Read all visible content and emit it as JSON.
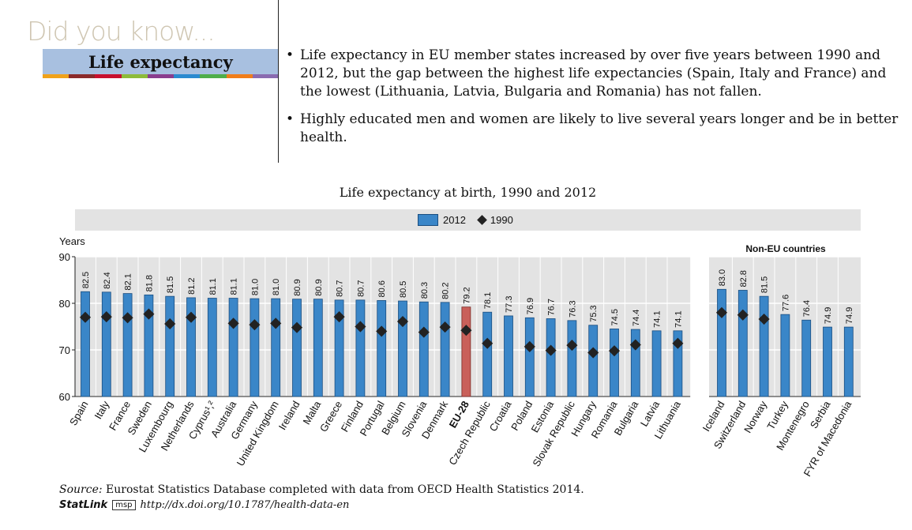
{
  "header": {
    "kicker": "Did you know...",
    "title": "Life expectancy",
    "stripe_colors": [
      "#f0a21a",
      "#8b2a2a",
      "#c8102e",
      "#8dbb3a",
      "#8a3d8e",
      "#2a8ad0",
      "#4fae4a",
      "#f07d1a",
      "#8a6bb0"
    ]
  },
  "bullets": [
    "Life expectancy in EU member states increased by over five years between 1990 and 2012, but the gap between the highest life expectancies (Spain, Italy and France) and the lowest (Lithuania, Latvia, Bulgaria and Romania) has not fallen.",
    "Highly educated men and women are likely to live several years longer and be in better health."
  ],
  "chart_data": {
    "type": "bar",
    "title": "Life expectancy at birth, 1990 and 2012",
    "ylabel": "Years",
    "ylim": [
      60,
      90
    ],
    "yticks": [
      60,
      70,
      80,
      90
    ],
    "grid": true,
    "legend": {
      "position": "top",
      "items": [
        "2012",
        "1990"
      ]
    },
    "colors": {
      "bar": "#3a86c8",
      "highlight": "#c9605a",
      "marker": "#222222",
      "panel": "#e3e3e3"
    },
    "group_label": "Non-EU countries",
    "series": [
      {
        "name": "2012",
        "values": [
          82.5,
          82.4,
          82.1,
          81.8,
          81.5,
          81.2,
          81.1,
          81.1,
          81.0,
          81.0,
          80.9,
          80.9,
          80.7,
          80.7,
          80.6,
          80.5,
          80.3,
          80.2,
          79.2,
          78.1,
          77.3,
          76.9,
          76.7,
          76.3,
          75.3,
          74.5,
          74.4,
          74.1,
          74.1,
          83.0,
          82.8,
          81.5,
          77.6,
          76.4,
          74.9,
          74.9
        ]
      },
      {
        "name": "1990",
        "values": [
          77.0,
          77.1,
          76.9,
          77.7,
          75.6,
          77.0,
          null,
          75.7,
          75.4,
          75.7,
          74.8,
          null,
          77.1,
          75.0,
          74.0,
          76.1,
          73.8,
          74.9,
          74.2,
          71.4,
          null,
          70.7,
          69.9,
          71.0,
          69.4,
          69.8,
          71.1,
          null,
          71.4,
          78.0,
          77.5,
          76.6,
          null,
          null,
          null,
          null
        ]
      }
    ],
    "categories": [
      "Spain",
      "Italy",
      "France",
      "Sweden",
      "Luxembourg",
      "Netherlands",
      "Cyprus¹,²",
      "Australia",
      "Germany",
      "United Kingdom",
      "Ireland",
      "Malta",
      "Greece",
      "Finland",
      "Portugal",
      "Belgium",
      "Slovenia",
      "Denmark",
      "EU-28",
      "Czech Republic",
      "Croatia",
      "Poland",
      "Estonia",
      "Slovak Republic",
      "Hungary",
      "Romania",
      "Bulgaria",
      "Latvia",
      "Lithuania",
      "Iceland",
      "Switzerland",
      "Norway",
      "Turkey",
      "Montenegro",
      "Serbia",
      "FYR of Macedonia"
    ],
    "value_labels": [
      "82.5",
      "82.4",
      "82.1",
      "81.8",
      "81.5",
      "81.2",
      "81.1",
      "81.1",
      "81.0",
      "81.0",
      "80.9",
      "80.9",
      "80.7",
      "80.7",
      "80.6",
      "80.5",
      "80.3",
      "80.2",
      "79.2",
      "78.1",
      "77.3",
      "76.9",
      "76.7",
      "76.3",
      "75.3",
      "74.5",
      "74.4",
      "74.1",
      "74.1",
      "83.0",
      "82.8",
      "81.5",
      "77.6",
      "76.4",
      "74.9",
      "74.9"
    ],
    "highlight": "EU-28",
    "eu_count": 29
  },
  "footer": {
    "source_label": "Source:",
    "source_text": " Eurostat Statistics Database completed with data from OECD Health Statistics 2014.",
    "statlink_label": "StatLink",
    "statlink_logo": "msp",
    "statlink_url": "http://dx.doi.org/10.1787/health-data-en"
  }
}
